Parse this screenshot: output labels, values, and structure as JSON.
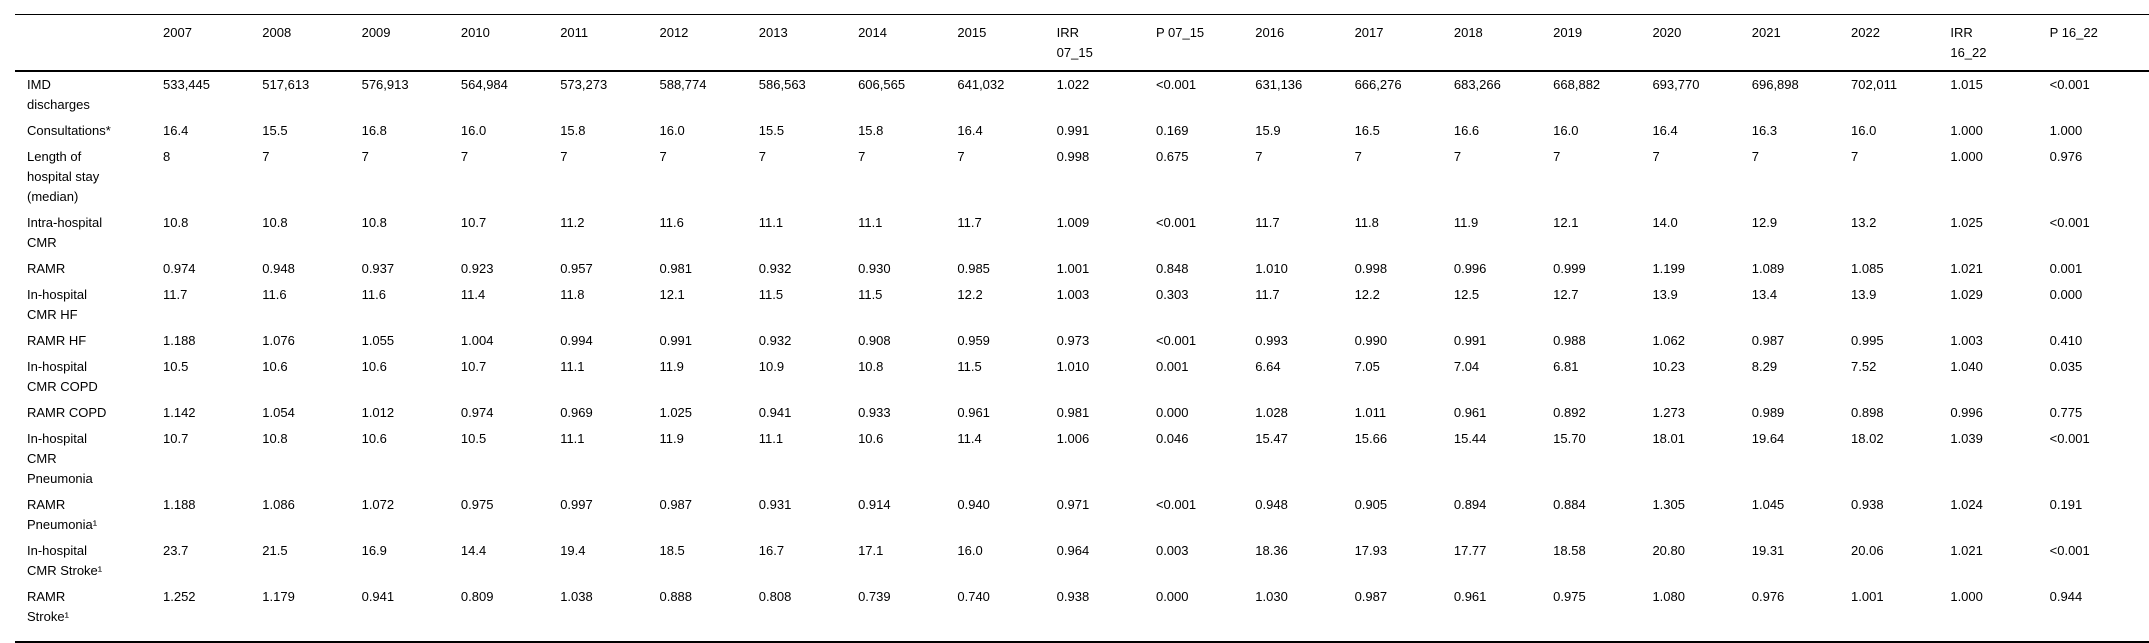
{
  "colors": {
    "background": "#ffffff",
    "text": "#000000",
    "rule": "#000000"
  },
  "table": {
    "columns": [
      "",
      "2007",
      "2008",
      "2009",
      "2010",
      "2011",
      "2012",
      "2013",
      "2014",
      "2015",
      "IRR\n07_15",
      "P 07_15",
      "2016",
      "2017",
      "2018",
      "2019",
      "2020",
      "2021",
      "2022",
      "IRR\n16_22",
      "P 16_22"
    ],
    "rows": [
      {
        "label": "IMD\ndischarges",
        "values": [
          "533,445",
          "517,613",
          "576,913",
          "564,984",
          "573,273",
          "588,774",
          "586,563",
          "606,565",
          "641,032",
          "1.022",
          "<0.001",
          "631,136",
          "666,276",
          "683,266",
          "668,882",
          "693,770",
          "696,898",
          "702,011",
          "1.015",
          "<0.001"
        ]
      },
      {
        "label": "Consultations*",
        "values": [
          "16.4",
          "15.5",
          "16.8",
          "16.0",
          "15.8",
          "16.0",
          "15.5",
          "15.8",
          "16.4",
          "0.991",
          "0.169",
          "15.9",
          "16.5",
          "16.6",
          "16.0",
          "16.4",
          "16.3",
          "16.0",
          "1.000",
          "1.000"
        ]
      },
      {
        "label": "Length of\nhospital stay\n(median)",
        "values": [
          "8",
          "7",
          "7",
          "7",
          "7",
          "7",
          "7",
          "7",
          "7",
          "0.998",
          "0.675",
          "7",
          "7",
          "7",
          "7",
          "7",
          "7",
          "7",
          "1.000",
          "0.976"
        ]
      },
      {
        "label": "Intra-hospital\nCMR",
        "values": [
          "10.8",
          "10.8",
          "10.8",
          "10.7",
          "11.2",
          "11.6",
          "11.1",
          "11.1",
          "11.7",
          "1.009",
          "<0.001",
          "11.7",
          "11.8",
          "11.9",
          "12.1",
          "14.0",
          "12.9",
          "13.2",
          "1.025",
          "<0.001"
        ]
      },
      {
        "label": "RAMR",
        "values": [
          "0.974",
          "0.948",
          "0.937",
          "0.923",
          "0.957",
          "0.981",
          "0.932",
          "0.930",
          "0.985",
          "1.001",
          "0.848",
          "1.010",
          "0.998",
          "0.996",
          "0.999",
          "1.199",
          "1.089",
          "1.085",
          "1.021",
          "0.001"
        ]
      },
      {
        "label": "In-hospital\nCMR HF",
        "values": [
          "11.7",
          "11.6",
          "11.6",
          "11.4",
          "11.8",
          "12.1",
          "11.5",
          "11.5",
          "12.2",
          "1.003",
          "0.303",
          "11.7",
          "12.2",
          "12.5",
          "12.7",
          "13.9",
          "13.4",
          "13.9",
          "1.029",
          "0.000"
        ]
      },
      {
        "label": "RAMR HF",
        "values": [
          "1.188",
          "1.076",
          "1.055",
          "1.004",
          "0.994",
          "0.991",
          "0.932",
          "0.908",
          "0.959",
          "0.973",
          "<0.001",
          "0.993",
          "0.990",
          "0.991",
          "0.988",
          "1.062",
          "0.987",
          "0.995",
          "1.003",
          "0.410"
        ]
      },
      {
        "label": "In-hospital\nCMR COPD",
        "values": [
          "10.5",
          "10.6",
          "10.6",
          "10.7",
          "11.1",
          "11.9",
          "10.9",
          "10.8",
          "11.5",
          "1.010",
          "0.001",
          "6.64",
          "7.05",
          "7.04",
          "6.81",
          "10.23",
          "8.29",
          "7.52",
          "1.040",
          "0.035"
        ]
      },
      {
        "label": "RAMR COPD",
        "values": [
          "1.142",
          "1.054",
          "1.012",
          "0.974",
          "0.969",
          "1.025",
          "0.941",
          "0.933",
          "0.961",
          "0.981",
          "0.000",
          "1.028",
          "1.011",
          "0.961",
          "0.892",
          "1.273",
          "0.989",
          "0.898",
          "0.996",
          "0.775"
        ]
      },
      {
        "label": "In-hospital\nCMR\nPneumonia",
        "values": [
          "10.7",
          "10.8",
          "10.6",
          "10.5",
          "11.1",
          "11.9",
          "11.1",
          "10.6",
          "11.4",
          "1.006",
          "0.046",
          "15.47",
          "15.66",
          "15.44",
          "15.70",
          "18.01",
          "19.64",
          "18.02",
          "1.039",
          "<0.001"
        ]
      },
      {
        "label": "RAMR\nPneumonia¹",
        "values": [
          "1.188",
          "1.086",
          "1.072",
          "0.975",
          "0.997",
          "0.987",
          "0.931",
          "0.914",
          "0.940",
          "0.971",
          "<0.001",
          "0.948",
          "0.905",
          "0.894",
          "0.884",
          "1.305",
          "1.045",
          "0.938",
          "1.024",
          "0.191"
        ]
      },
      {
        "label": "In-hospital\nCMR Stroke¹",
        "values": [
          "23.7",
          "21.5",
          "16.9",
          "14.4",
          "19.4",
          "18.5",
          "16.7",
          "17.1",
          "16.0",
          "0.964",
          "0.003",
          "18.36",
          "17.93",
          "17.77",
          "18.58",
          "20.80",
          "19.31",
          "20.06",
          "1.021",
          "<0.001"
        ]
      },
      {
        "label": "RAMR\nStroke¹",
        "values": [
          "1.252",
          "1.179",
          "0.941",
          "0.809",
          "1.038",
          "0.888",
          "0.808",
          "0.739",
          "0.740",
          "0.938",
          "0.000",
          "1.030",
          "0.987",
          "0.961",
          "0.975",
          "1.080",
          "0.976",
          "1.001",
          "1.000",
          "0.944"
        ]
      }
    ]
  }
}
